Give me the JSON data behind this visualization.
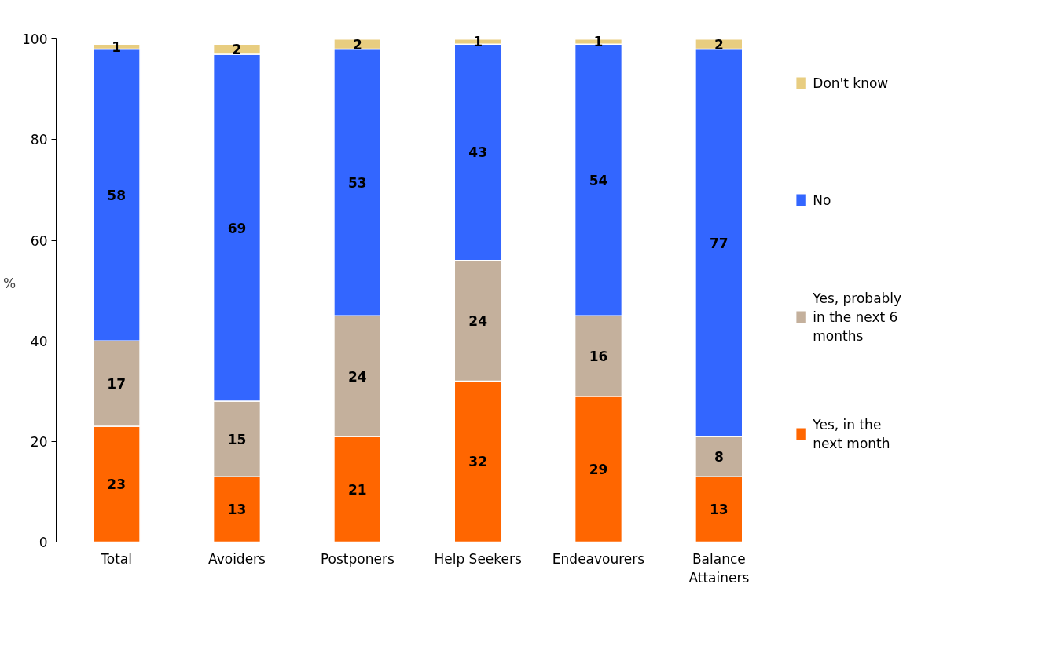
{
  "chart_data": {
    "type": "bar",
    "stacked": true,
    "ylabel": "%",
    "categories": [
      "Total",
      "Avoiders",
      "Postponers",
      "Help Seekers",
      "Endeavourers",
      "Balance Attainers"
    ],
    "series": [
      {
        "name": "Yes, in the next month",
        "color": "#ff6600",
        "values": [
          23,
          13,
          21,
          32,
          29,
          13
        ]
      },
      {
        "name": "Yes, probably in the next 6 months",
        "color": "#c4b09c",
        "values": [
          17,
          15,
          24,
          24,
          16,
          8
        ]
      },
      {
        "name": "No",
        "color": "#3366ff",
        "values": [
          58,
          69,
          53,
          43,
          54,
          77
        ]
      },
      {
        "name": "Don't know",
        "color": "#e8cd80",
        "values": [
          1,
          2,
          2,
          1,
          1,
          2
        ]
      }
    ],
    "ylim": [
      0,
      100
    ],
    "yticks": [
      0,
      20,
      40,
      60,
      80,
      100
    ],
    "grid": false,
    "legend": "right",
    "data_labels": true
  }
}
